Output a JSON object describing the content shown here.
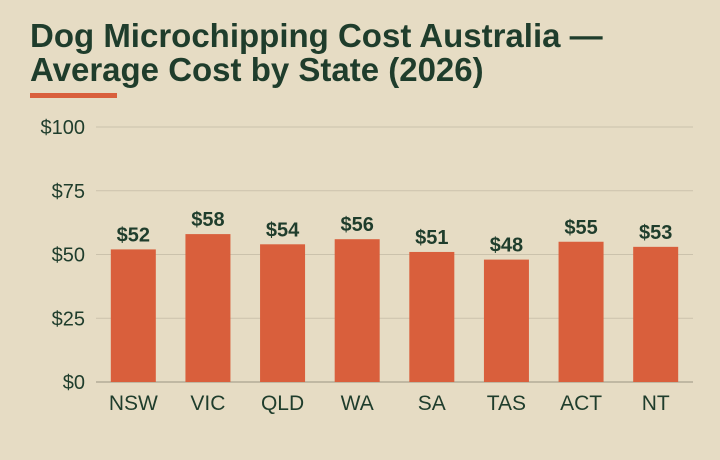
{
  "colors": {
    "background": "#e6dcc4",
    "text": "#1f3d2c",
    "accent": "#d95f3c",
    "bar": "#d95f3c",
    "grid": "#cbc2ac",
    "axis": "#9a9482"
  },
  "chart_data": {
    "type": "bar",
    "title": "Dog Microchipping Cost Australia — Average Cost by State (2026)",
    "xlabel": "",
    "ylabel": "",
    "categories": [
      "NSW",
      "VIC",
      "QLD",
      "WA",
      "SA",
      "TAS",
      "ACT",
      "NT"
    ],
    "values": [
      52,
      58,
      54,
      56,
      51,
      48,
      55,
      53
    ],
    "value_labels": [
      "$52",
      "$58",
      "$54",
      "$56",
      "$51",
      "$48",
      "$55",
      "$53"
    ],
    "ylim": [
      0,
      100
    ],
    "yticks": [
      0,
      25,
      50,
      75,
      100
    ],
    "ytick_labels": [
      "$0",
      "$25",
      "$50",
      "$75",
      "$100"
    ],
    "grid": true,
    "legend": "none"
  }
}
